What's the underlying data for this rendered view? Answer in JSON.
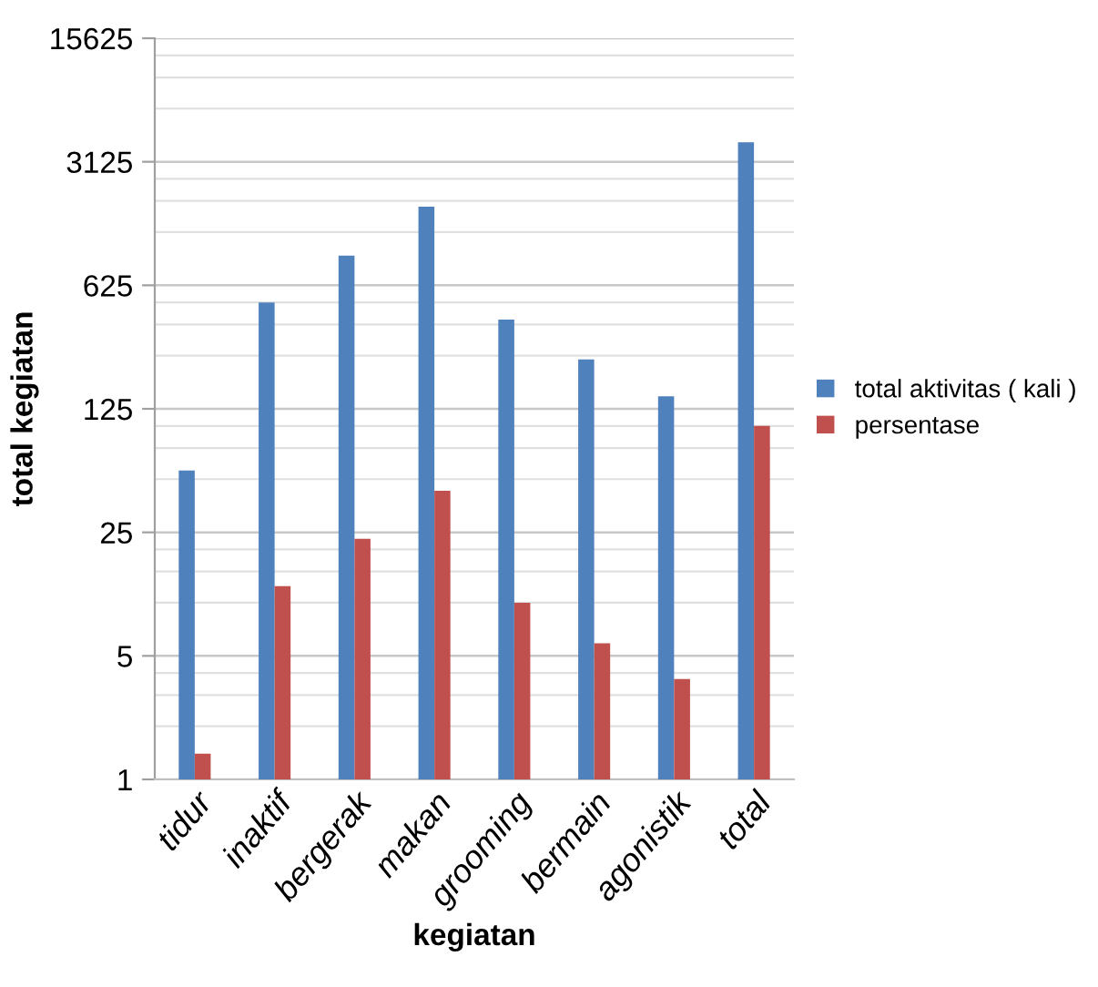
{
  "chart_data": {
    "type": "bar",
    "xlabel": "kegiatan",
    "ylabel": "total kegiatan",
    "categories": [
      "tidur",
      "inaktif",
      "bergerak",
      "makan",
      "grooming",
      "bermain",
      "agonistik",
      "total"
    ],
    "series": [
      {
        "name": "total aktivitas ( kali )",
        "color": "#4f81bd",
        "values": [
          56,
          500,
          920,
          1740,
          400,
          238,
          147,
          4030
        ]
      },
      {
        "name": "persentase",
        "color": "#c0504d",
        "values": [
          1.4,
          12.4,
          23,
          43,
          10,
          5.9,
          3.7,
          100
        ]
      }
    ],
    "log": "y",
    "ylim": [
      1,
      15625
    ],
    "yticks": [
      1,
      5,
      25,
      125,
      625,
      3125,
      15625
    ],
    "grid": "y",
    "legend": "right"
  }
}
